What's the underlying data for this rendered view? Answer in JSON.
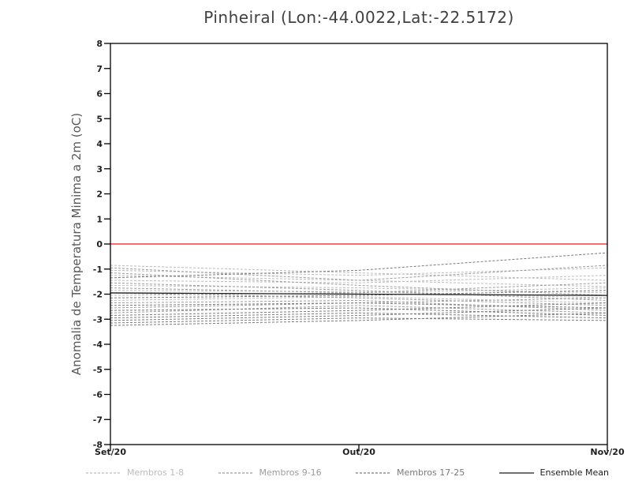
{
  "chart_data": {
    "type": "line",
    "title": "Pinheiral (Lon:-44.0022,Lat:-22.5172)",
    "ylabel": "Anomalia de Temperatura Minima a 2m (oC)",
    "x_categories": [
      "Set/20",
      "Out/20",
      "Nov/20"
    ],
    "ylim": [
      -8,
      8
    ],
    "yticks": [
      8,
      7,
      6,
      5,
      4,
      3,
      2,
      1,
      0,
      -1,
      -2,
      -3,
      -4,
      -5,
      -6,
      -7,
      -8
    ],
    "grid": false,
    "legend_position": "bottom",
    "zero_line": {
      "value": 0,
      "color": "#fa3c3c"
    },
    "frame_color": "#000000",
    "series_groups": [
      {
        "name": "Membros 1-8",
        "color": "#bcbcbc",
        "dash": "3 2",
        "width": 1,
        "members": [
          [
            -0.85,
            -1.15,
            -1.45
          ],
          [
            -1.05,
            -1.25,
            -0.95
          ],
          [
            -1.25,
            -1.45,
            -1.7
          ],
          [
            -1.45,
            -1.55,
            -1.25
          ],
          [
            -1.65,
            -1.75,
            -1.95
          ],
          [
            -1.85,
            -1.9,
            -2.15
          ],
          [
            -2.05,
            -1.95,
            -1.75
          ],
          [
            -2.25,
            -2.1,
            -2.35
          ]
        ]
      },
      {
        "name": "Membros 9-16",
        "color": "#9c9c9c",
        "dash": "3 2",
        "width": 1,
        "members": [
          [
            -0.95,
            -1.45,
            -0.85
          ],
          [
            -1.15,
            -1.65,
            -2.05
          ],
          [
            -1.55,
            -1.85,
            -2.25
          ],
          [
            -1.75,
            -1.95,
            -1.55
          ],
          [
            -1.95,
            -2.15,
            -2.45
          ],
          [
            -2.35,
            -2.25,
            -2.65
          ],
          [
            -2.55,
            -2.35,
            -2.15
          ],
          [
            -2.75,
            -2.45,
            -2.75
          ]
        ]
      },
      {
        "name": "Membros 17-25",
        "color": "#7a7a7a",
        "dash": "3 2",
        "width": 1,
        "members": [
          [
            -1.35,
            -1.05,
            -0.35
          ],
          [
            -2.15,
            -2.05,
            -1.85
          ],
          [
            -2.45,
            -2.35,
            -2.55
          ],
          [
            -2.65,
            -2.55,
            -2.85
          ],
          [
            -2.85,
            -2.65,
            -2.35
          ],
          [
            -2.95,
            -2.75,
            -2.95
          ],
          [
            -3.05,
            -2.85,
            -2.55
          ],
          [
            -3.15,
            -2.95,
            -3.05
          ],
          [
            -3.25,
            -3.05,
            -2.75
          ]
        ]
      },
      {
        "name": "Ensemble Mean",
        "color": "#1c1c1c",
        "dash": null,
        "width": 1.3,
        "members": [
          [
            -1.95,
            -2.0,
            -2.05
          ]
        ]
      }
    ]
  }
}
